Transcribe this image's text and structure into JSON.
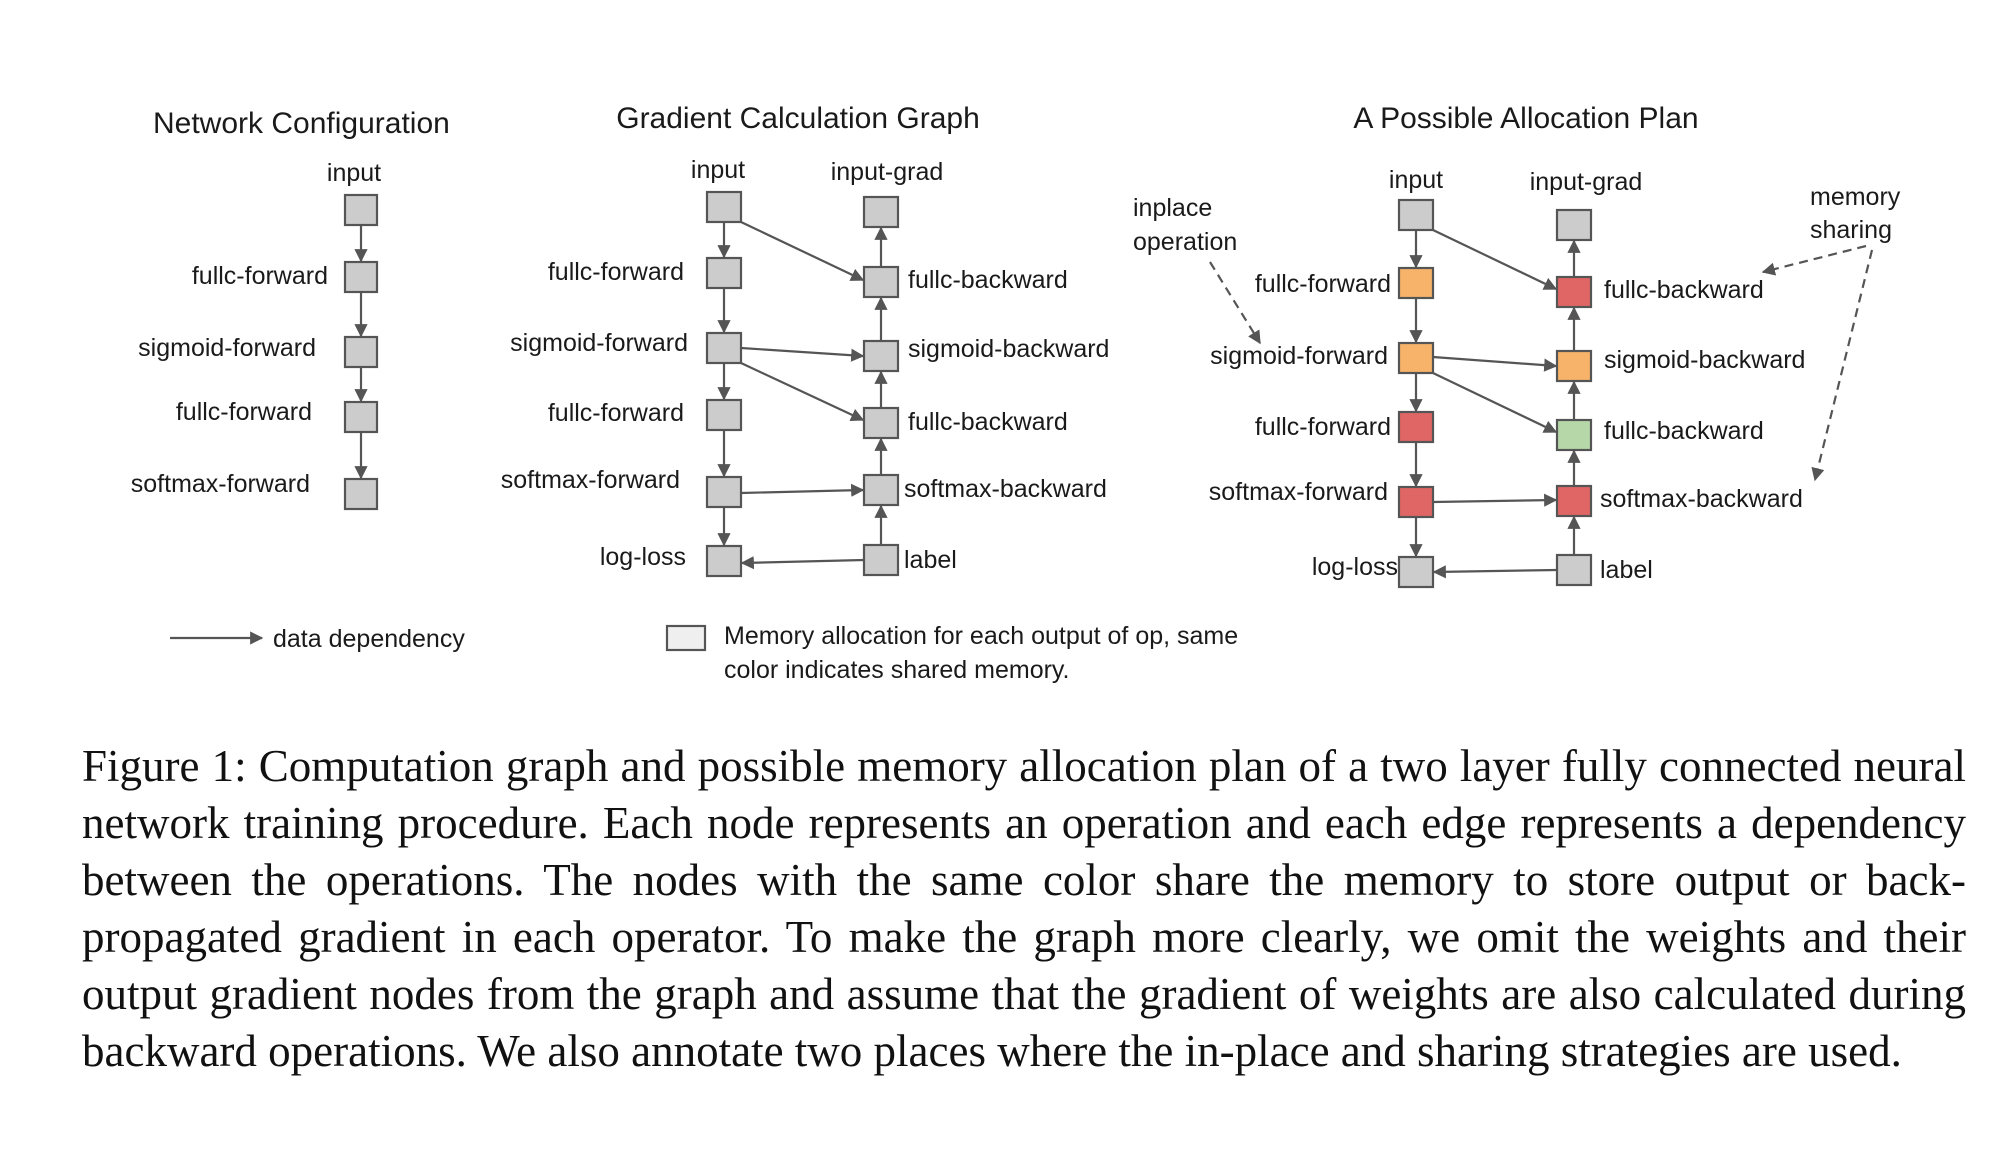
{
  "panels": {
    "network": {
      "title": "Network Configuration",
      "nodes": [
        "input",
        "fullc-forward",
        "sigmoid-forward",
        "fullc-forward",
        "softmax-forward"
      ]
    },
    "gradient": {
      "title": "Gradient Calculation Graph",
      "forward_nodes": [
        "input",
        "fullc-forward",
        "sigmoid-forward",
        "fullc-forward",
        "softmax-forward",
        "log-loss"
      ],
      "backward_nodes": [
        "input-grad",
        "fullc-backward",
        "sigmoid-backward",
        "fullc-backward",
        "softmax-backward",
        "label"
      ]
    },
    "allocation": {
      "title": "A Possible Allocation Plan",
      "forward_nodes": [
        "input",
        "fullc-forward",
        "sigmoid-forward",
        "fullc-forward",
        "softmax-forward",
        "log-loss"
      ],
      "backward_nodes": [
        "input-grad",
        "fullc-backward",
        "sigmoid-backward",
        "fullc-backward",
        "softmax-backward",
        "label"
      ],
      "annotations": {
        "inplace": [
          "inplace",
          "operation"
        ],
        "sharing": [
          "memory",
          "sharing"
        ]
      }
    }
  },
  "colors": {
    "gray": "#cccccc",
    "orange": "#f7b36a",
    "red": "#e06666",
    "green": "#b6d7a8",
    "legend_box": "#efefef"
  },
  "allocation_colors": {
    "forward": [
      "gray",
      "orange",
      "orange",
      "red",
      "red",
      "gray"
    ],
    "backward": [
      "gray",
      "red",
      "orange",
      "green",
      "red",
      "gray"
    ]
  },
  "legend": {
    "arrow_label": "data dependency",
    "box_label": [
      "Memory allocation for each output of op, same",
      "color indicates shared memory."
    ]
  },
  "caption": "Figure 1: Computation graph and possible memory allocation plan of a two layer fully connected neural network training procedure. Each node represents an operation and each edge represents a dependency between the operations. The nodes with the same color share the memory to store output or back-propagated gradient in each operator. To make the graph more clearly, we omit the weights and their output gradient nodes from the graph and assume that the gradient of weights are also calculated during backward operations. We also annotate two places where the in-place and sharing strategies are used."
}
